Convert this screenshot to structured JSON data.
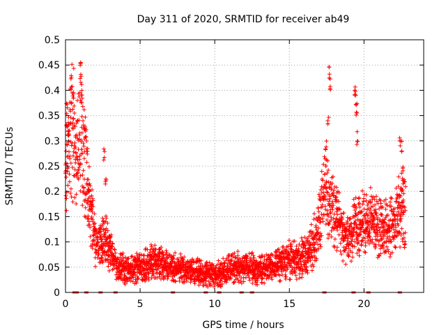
{
  "chart_data": {
    "type": "scatter",
    "title": "Day 311 of 2020, SRMTID for receiver ab49",
    "xlabel": "GPS time / hours",
    "ylabel": "SRMTID / TECUs",
    "xlim": [
      0,
      24
    ],
    "ylim": [
      0,
      0.5
    ],
    "x_ticks": [
      0,
      5,
      10,
      15,
      20
    ],
    "x_tick_labels": [
      "0",
      "5",
      "10",
      "15",
      "20"
    ],
    "y_ticks": [
      0,
      0.05,
      0.1,
      0.15,
      0.2,
      0.25,
      0.3,
      0.35,
      0.4,
      0.45,
      0.5
    ],
    "y_tick_labels": [
      "0",
      "0.05",
      "0.1",
      "0.15",
      "0.2",
      "0.25",
      "0.3",
      "0.35",
      "0.4",
      "0.45",
      "0.5"
    ],
    "grid": true,
    "marker": "+",
    "color": "#ff0000",
    "series": [
      {
        "name": "SRMTID",
        "trend": [
          [
            0.0,
            0.2
          ],
          [
            0.2,
            0.28
          ],
          [
            0.4,
            0.32
          ],
          [
            0.6,
            0.3
          ],
          [
            0.8,
            0.26
          ],
          [
            1.0,
            0.3
          ],
          [
            1.2,
            0.28
          ],
          [
            1.5,
            0.2
          ],
          [
            1.8,
            0.15
          ],
          [
            2.0,
            0.09
          ],
          [
            2.3,
            0.1
          ],
          [
            2.6,
            0.11
          ],
          [
            3.0,
            0.08
          ],
          [
            3.5,
            0.05
          ],
          [
            4.0,
            0.045
          ],
          [
            5.0,
            0.05
          ],
          [
            6.0,
            0.06
          ],
          [
            7.0,
            0.05
          ],
          [
            8.0,
            0.045
          ],
          [
            9.0,
            0.04
          ],
          [
            10.0,
            0.035
          ],
          [
            10.5,
            0.04
          ],
          [
            11.0,
            0.05
          ],
          [
            12.0,
            0.05
          ],
          [
            13.0,
            0.045
          ],
          [
            14.0,
            0.055
          ],
          [
            15.0,
            0.065
          ],
          [
            16.0,
            0.07
          ],
          [
            16.5,
            0.09
          ],
          [
            17.0,
            0.13
          ],
          [
            17.4,
            0.2
          ],
          [
            17.8,
            0.18
          ],
          [
            18.2,
            0.15
          ],
          [
            18.6,
            0.12
          ],
          [
            19.0,
            0.1
          ],
          [
            19.4,
            0.13
          ],
          [
            19.8,
            0.14
          ],
          [
            20.2,
            0.13
          ],
          [
            20.6,
            0.14
          ],
          [
            21.0,
            0.13
          ],
          [
            21.5,
            0.12
          ],
          [
            22.0,
            0.14
          ],
          [
            22.5,
            0.18
          ],
          [
            22.8,
            0.15
          ]
        ],
        "spikes": [
          [
            0.1,
            0.38
          ],
          [
            0.2,
            0.34
          ],
          [
            0.35,
            0.43
          ],
          [
            0.5,
            0.4
          ],
          [
            1.0,
            0.46
          ],
          [
            1.05,
            0.44
          ],
          [
            1.1,
            0.4
          ],
          [
            1.3,
            0.33
          ],
          [
            1.45,
            0.3
          ],
          [
            2.6,
            0.29
          ],
          [
            2.7,
            0.23
          ],
          [
            17.45,
            0.3
          ],
          [
            17.6,
            0.36
          ],
          [
            17.7,
            0.45
          ],
          [
            17.75,
            0.43
          ],
          [
            19.4,
            0.42
          ],
          [
            19.45,
            0.4
          ],
          [
            19.5,
            0.38
          ],
          [
            19.55,
            0.32
          ],
          [
            22.4,
            0.32
          ],
          [
            22.5,
            0.3
          ],
          [
            22.6,
            0.25
          ]
        ]
      }
    ],
    "data_gaps_at_zero": [
      0.6,
      0.75,
      1.4,
      2.35,
      3.35,
      7.2,
      9.4,
      10.3,
      11.8,
      12.5,
      17.35,
      19.3,
      20.3,
      22.4
    ]
  }
}
